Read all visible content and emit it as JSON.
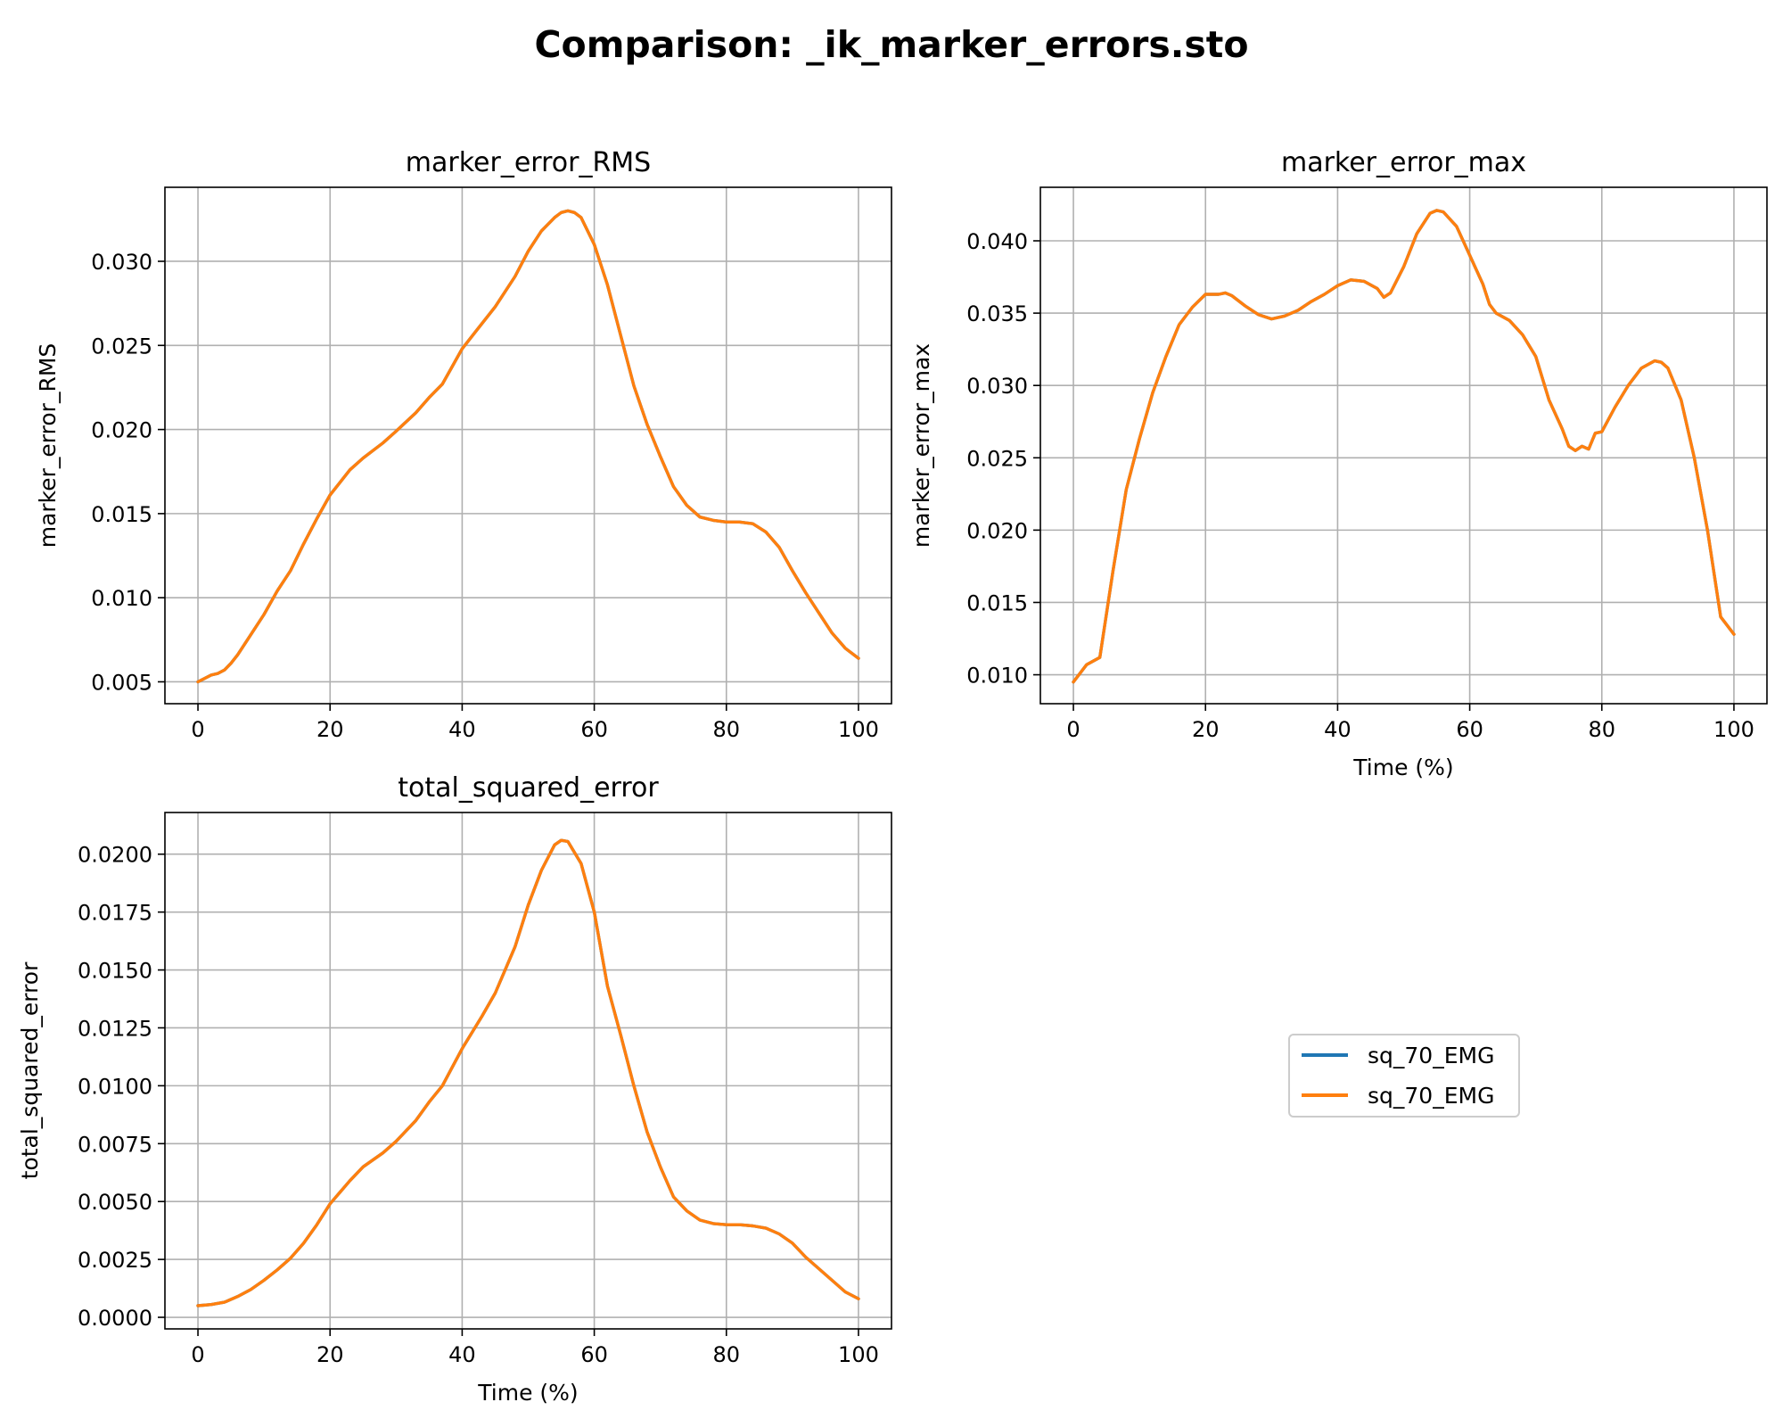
{
  "figure": {
    "title": "Comparison: _ik_marker_errors.sto"
  },
  "colors": {
    "series_1": "#1f77b4",
    "series_2": "#ff7f0e",
    "grid": "#b0b0b0"
  },
  "legend": {
    "placement": "center of empty bottom-right panel",
    "entries": [
      "sq_70_EMG",
      "sq_70_EMG"
    ]
  },
  "chart_data": [
    {
      "type": "line",
      "title": "marker_error_RMS",
      "xlabel": "",
      "ylabel": "marker_error_RMS",
      "xlim": [
        -5,
        105
      ],
      "ylim": [
        0.0037,
        0.0344
      ],
      "xticks": [
        0,
        20,
        40,
        60,
        80,
        100
      ],
      "xtick_labels": [
        "0",
        "20",
        "40",
        "60",
        "80",
        "100"
      ],
      "yticks": [
        0.005,
        0.01,
        0.015,
        0.02,
        0.025,
        0.03
      ],
      "ytick_labels": [
        "0.005",
        "0.010",
        "0.015",
        "0.020",
        "0.025",
        "0.030"
      ],
      "grid": true,
      "x": [
        0,
        2,
        3,
        4,
        5,
        6,
        8,
        10,
        12,
        14,
        16,
        18,
        20,
        23,
        25,
        28,
        30,
        33,
        35,
        37,
        40,
        42,
        45,
        48,
        50,
        52,
        54,
        55,
        56,
        57,
        58,
        60,
        62,
        64,
        66,
        68,
        70,
        72,
        74,
        76,
        78,
        80,
        82,
        84,
        86,
        88,
        90,
        92,
        94,
        96,
        98,
        100
      ],
      "series": [
        {
          "name": "sq_70_EMG",
          "values": [
            0.005,
            0.0054,
            0.0055,
            0.0057,
            0.0061,
            0.0066,
            0.0078,
            0.009,
            0.0104,
            0.0116,
            0.0132,
            0.0147,
            0.0161,
            0.0176,
            0.0183,
            0.0192,
            0.0199,
            0.021,
            0.0219,
            0.0227,
            0.0248,
            0.0258,
            0.0273,
            0.0291,
            0.0306,
            0.0318,
            0.0326,
            0.0329,
            0.033,
            0.0329,
            0.0326,
            0.031,
            0.0286,
            0.0256,
            0.0226,
            0.0203,
            0.0184,
            0.0166,
            0.0155,
            0.0148,
            0.0146,
            0.0145,
            0.0145,
            0.0144,
            0.0139,
            0.013,
            0.0116,
            0.0103,
            0.0091,
            0.0079,
            0.007,
            0.0064
          ]
        },
        {
          "name": "sq_70_EMG",
          "values": [
            0.005,
            0.0054,
            0.0055,
            0.0057,
            0.0061,
            0.0066,
            0.0078,
            0.009,
            0.0104,
            0.0116,
            0.0132,
            0.0147,
            0.0161,
            0.0176,
            0.0183,
            0.0192,
            0.0199,
            0.021,
            0.0219,
            0.0227,
            0.0248,
            0.0258,
            0.0273,
            0.0291,
            0.0306,
            0.0318,
            0.0326,
            0.0329,
            0.033,
            0.0329,
            0.0326,
            0.031,
            0.0286,
            0.0256,
            0.0226,
            0.0203,
            0.0184,
            0.0166,
            0.0155,
            0.0148,
            0.0146,
            0.0145,
            0.0145,
            0.0144,
            0.0139,
            0.013,
            0.0116,
            0.0103,
            0.0091,
            0.0079,
            0.007,
            0.0064
          ]
        }
      ]
    },
    {
      "type": "line",
      "title": "marker_error_max",
      "xlabel": "Time (%)",
      "ylabel": "marker_error_max",
      "xlim": [
        -5,
        105
      ],
      "ylim": [
        0.008,
        0.0437
      ],
      "xticks": [
        0,
        20,
        40,
        60,
        80,
        100
      ],
      "xtick_labels": [
        "0",
        "20",
        "40",
        "60",
        "80",
        "100"
      ],
      "yticks": [
        0.01,
        0.015,
        0.02,
        0.025,
        0.03,
        0.035,
        0.04
      ],
      "ytick_labels": [
        "0.010",
        "0.015",
        "0.020",
        "0.025",
        "0.030",
        "0.035",
        "0.040"
      ],
      "grid": true,
      "x": [
        0,
        2,
        4,
        6,
        8,
        10,
        12,
        14,
        16,
        18,
        20,
        22,
        23,
        24,
        26,
        28,
        30,
        32,
        34,
        36,
        38,
        40,
        42,
        44,
        46,
        47,
        48,
        50,
        52,
        54,
        55,
        56,
        58,
        60,
        62,
        63,
        64,
        66,
        68,
        70,
        72,
        74,
        75,
        76,
        77,
        78,
        79,
        80,
        82,
        84,
        86,
        88,
        89,
        90,
        92,
        94,
        96,
        98,
        100
      ],
      "series": [
        {
          "name": "sq_70_EMG",
          "values": [
            0.0095,
            0.0107,
            0.0112,
            0.0172,
            0.0228,
            0.0263,
            0.0295,
            0.032,
            0.0342,
            0.0354,
            0.0363,
            0.0363,
            0.0364,
            0.0362,
            0.0355,
            0.0349,
            0.0346,
            0.0348,
            0.0352,
            0.0358,
            0.0363,
            0.0369,
            0.0373,
            0.0372,
            0.0367,
            0.0361,
            0.0364,
            0.0382,
            0.0405,
            0.0419,
            0.0421,
            0.042,
            0.041,
            0.039,
            0.037,
            0.0356,
            0.035,
            0.0345,
            0.0335,
            0.032,
            0.029,
            0.027,
            0.0258,
            0.0255,
            0.0258,
            0.0256,
            0.0267,
            0.0268,
            0.0285,
            0.03,
            0.0312,
            0.0317,
            0.0316,
            0.0312,
            0.029,
            0.025,
            0.02,
            0.014,
            0.0128
          ]
        },
        {
          "name": "sq_70_EMG",
          "values": [
            0.0095,
            0.0107,
            0.0112,
            0.0172,
            0.0228,
            0.0263,
            0.0295,
            0.032,
            0.0342,
            0.0354,
            0.0363,
            0.0363,
            0.0364,
            0.0362,
            0.0355,
            0.0349,
            0.0346,
            0.0348,
            0.0352,
            0.0358,
            0.0363,
            0.0369,
            0.0373,
            0.0372,
            0.0367,
            0.0361,
            0.0364,
            0.0382,
            0.0405,
            0.0419,
            0.0421,
            0.042,
            0.041,
            0.039,
            0.037,
            0.0356,
            0.035,
            0.0345,
            0.0335,
            0.032,
            0.029,
            0.027,
            0.0258,
            0.0255,
            0.0258,
            0.0256,
            0.0267,
            0.0268,
            0.0285,
            0.03,
            0.0312,
            0.0317,
            0.0316,
            0.0312,
            0.029,
            0.025,
            0.02,
            0.014,
            0.0128
          ]
        }
      ]
    },
    {
      "type": "line",
      "title": "total_squared_error",
      "xlabel": "Time (%)",
      "ylabel": "total_squared_error",
      "xlim": [
        -5,
        105
      ],
      "ylim": [
        -0.0005,
        0.0218
      ],
      "xticks": [
        0,
        20,
        40,
        60,
        80,
        100
      ],
      "xtick_labels": [
        "0",
        "20",
        "40",
        "60",
        "80",
        "100"
      ],
      "yticks": [
        0.0,
        0.0025,
        0.005,
        0.0075,
        0.01,
        0.0125,
        0.015,
        0.0175,
        0.02
      ],
      "ytick_labels": [
        "0.0000",
        "0.0025",
        "0.0050",
        "0.0075",
        "0.0100",
        "0.0125",
        "0.0150",
        "0.0175",
        "0.0200"
      ],
      "grid": true,
      "x": [
        0,
        2,
        4,
        6,
        8,
        10,
        12,
        14,
        16,
        18,
        20,
        23,
        25,
        28,
        30,
        33,
        35,
        37,
        40,
        43,
        45,
        48,
        50,
        52,
        54,
        55,
        56,
        58,
        60,
        62,
        64,
        66,
        68,
        70,
        72,
        74,
        76,
        78,
        80,
        82,
        84,
        86,
        88,
        90,
        92,
        94,
        96,
        98,
        100
      ],
      "series": [
        {
          "name": "sq_70_EMG",
          "values": [
            0.0005,
            0.00055,
            0.00065,
            0.0009,
            0.0012,
            0.0016,
            0.00205,
            0.00255,
            0.0032,
            0.004,
            0.0049,
            0.0059,
            0.0065,
            0.0071,
            0.0076,
            0.0085,
            0.0093,
            0.01,
            0.0116,
            0.013,
            0.014,
            0.016,
            0.0178,
            0.0193,
            0.0204,
            0.0206,
            0.02055,
            0.0196,
            0.0175,
            0.0143,
            0.0122,
            0.01,
            0.008,
            0.0065,
            0.0052,
            0.0046,
            0.0042,
            0.00405,
            0.004,
            0.004,
            0.00395,
            0.00385,
            0.0036,
            0.0032,
            0.0026,
            0.0021,
            0.0016,
            0.0011,
            0.0008
          ]
        },
        {
          "name": "sq_70_EMG",
          "values": [
            0.0005,
            0.00055,
            0.00065,
            0.0009,
            0.0012,
            0.0016,
            0.00205,
            0.00255,
            0.0032,
            0.004,
            0.0049,
            0.0059,
            0.0065,
            0.0071,
            0.0076,
            0.0085,
            0.0093,
            0.01,
            0.0116,
            0.013,
            0.014,
            0.016,
            0.0178,
            0.0193,
            0.0204,
            0.0206,
            0.02055,
            0.0196,
            0.0175,
            0.0143,
            0.0122,
            0.01,
            0.008,
            0.0065,
            0.0052,
            0.0046,
            0.0042,
            0.00405,
            0.004,
            0.004,
            0.00395,
            0.00385,
            0.0036,
            0.0032,
            0.0026,
            0.0021,
            0.0016,
            0.0011,
            0.0008
          ]
        }
      ]
    }
  ]
}
